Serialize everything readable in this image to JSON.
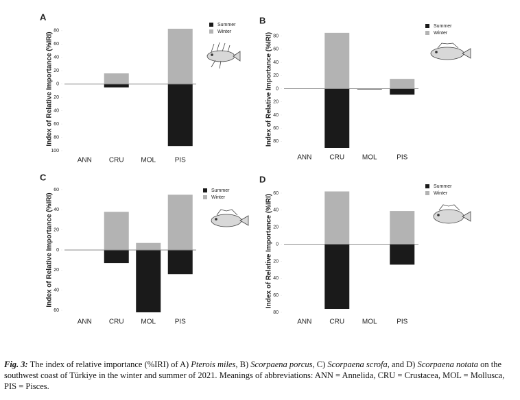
{
  "chart_data": [
    {
      "type": "bar",
      "label": "A",
      "y_label": "Index of Relative Importance (%IRI)",
      "categories": [
        "ANN",
        "CRU",
        "MOL",
        "PIS"
      ],
      "series": [
        {
          "name": "Summer",
          "color": "#1a1a1a",
          "values": [
            0,
            -5,
            0,
            -93
          ]
        },
        {
          "name": "Winter",
          "color": "#b3b3b3",
          "values": [
            0,
            16,
            0,
            83
          ]
        }
      ],
      "ylim": [
        -100,
        85
      ],
      "yticks": [
        80,
        60,
        40,
        20,
        0,
        {
          "value": -20,
          "label": "20"
        },
        {
          "value": -40,
          "label": "40"
        },
        {
          "value": -60,
          "label": "60"
        },
        {
          "value": -80,
          "label": "80"
        },
        {
          "value": -100,
          "label": "100"
        }
      ]
    },
    {
      "type": "bar",
      "label": "B",
      "y_label": "Index of Relative Importance (%IRI)",
      "categories": [
        "ANN",
        "CRU",
        "MOL",
        "PIS"
      ],
      "series": [
        {
          "name": "Summer",
          "color": "#1a1a1a",
          "values": [
            0,
            -90,
            -1,
            -9
          ]
        },
        {
          "name": "Winter",
          "color": "#b3b3b3",
          "values": [
            0,
            85,
            0,
            15
          ]
        }
      ],
      "ylim": [
        -90,
        88
      ],
      "yticks": [
        80,
        60,
        40,
        20,
        0,
        {
          "value": -20,
          "label": "20"
        },
        {
          "value": -40,
          "label": "40"
        },
        {
          "value": -60,
          "label": "60"
        },
        {
          "value": -80,
          "label": "80"
        }
      ]
    },
    {
      "type": "bar",
      "label": "C",
      "y_label": "Index of Relative Importance (%IRI)",
      "categories": [
        "ANN",
        "CRU",
        "MOL",
        "PIS"
      ],
      "series": [
        {
          "name": "Summer",
          "color": "#1a1a1a",
          "values": [
            0,
            -13,
            -62,
            -24
          ]
        },
        {
          "name": "Winter",
          "color": "#b3b3b3",
          "values": [
            0,
            38,
            7,
            55
          ]
        }
      ],
      "ylim": [
        -62,
        62
      ],
      "yticks": [
        60,
        40,
        20,
        0,
        {
          "value": -20,
          "label": "20"
        },
        {
          "value": -40,
          "label": "40"
        },
        {
          "value": -60,
          "label": "60"
        }
      ]
    },
    {
      "type": "bar",
      "label": "D",
      "y_label": "Index of Relative Importance (%IRI)",
      "categories": [
        "ANN",
        "CRU",
        "MOL",
        "PIS"
      ],
      "series": [
        {
          "name": "Summer",
          "color": "#1a1a1a",
          "values": [
            0,
            -76,
            0,
            -24
          ]
        },
        {
          "name": "Winter",
          "color": "#b3b3b3",
          "values": [
            0,
            62,
            0,
            39
          ]
        }
      ],
      "ylim": [
        -80,
        64
      ],
      "yticks": [
        60,
        40,
        20,
        0,
        {
          "value": -20,
          "label": "20"
        },
        {
          "value": -40,
          "label": "40"
        },
        {
          "value": -60,
          "label": "60"
        },
        {
          "value": -80,
          "label": "80"
        }
      ]
    }
  ],
  "caption": {
    "label": "Fig. 3:",
    "parts": [
      " The index of relative importance (%IRI) of A) ",
      "Pterois miles",
      ", B) ",
      "Scorpaena porcus",
      ", C) ",
      "Scorpaena scrofa",
      ", and D) ",
      "Scorpaena notata",
      " on the southwest coast of Türkiye in the winter and summer of 2021. Meanings of abbreviations: ANN = Annelida, CRU = Crustacea, MOL = Mollusca, PIS = Pisces."
    ]
  }
}
